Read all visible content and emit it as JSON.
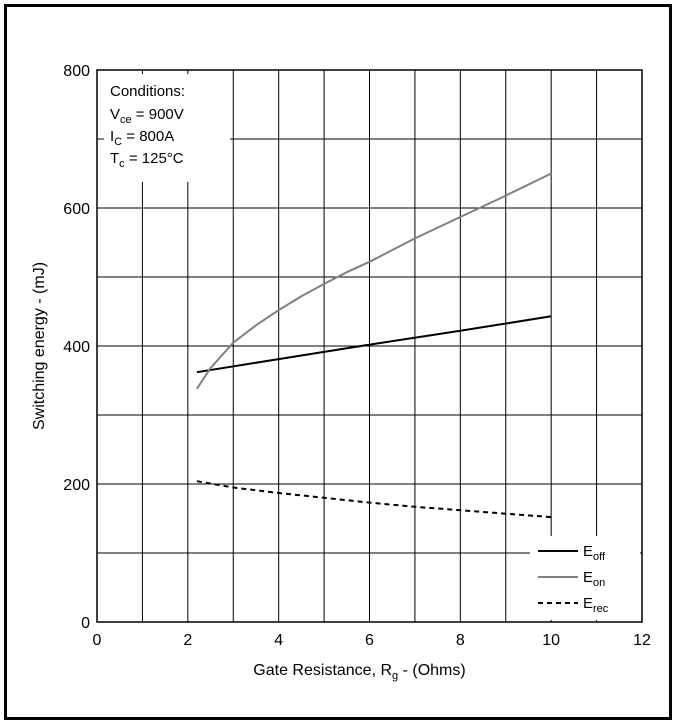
{
  "chart_data": {
    "type": "line",
    "xlabel": {
      "main": "Gate Resistance, R",
      "sub": "g",
      "tail": " - (Ohms)"
    },
    "ylabel": "Switching energy - (mJ)",
    "xlim": [
      0,
      12
    ],
    "ylim": [
      0,
      800
    ],
    "x_ticks": [
      0,
      2,
      4,
      6,
      8,
      10,
      12
    ],
    "y_ticks": [
      0,
      200,
      400,
      600,
      800
    ],
    "grid": true,
    "legend_position": "bottom-right",
    "conditions": {
      "title": "Conditions:",
      "lines": [
        {
          "main": "V",
          "sub": "ce",
          "tail": " = 900V"
        },
        {
          "main": "I",
          "sub": "C",
          "tail": " = 800A"
        },
        {
          "main": "T",
          "sub": "c",
          "tail": " = 125°C"
        }
      ]
    },
    "series": [
      {
        "key": "eoff",
        "label_main": "E",
        "label_sub": "off",
        "color": "#000000",
        "style": "solid",
        "x": [
          2.2,
          4,
          6,
          8,
          10
        ],
        "y": [
          362,
          381,
          402,
          422,
          443
        ]
      },
      {
        "key": "eon",
        "label_main": "E",
        "label_sub": "on",
        "color": "#808080",
        "style": "solid",
        "x": [
          2.2,
          2.5,
          3,
          3.5,
          4,
          4.5,
          5,
          5.5,
          6,
          7,
          8,
          9,
          10
        ],
        "y": [
          338,
          368,
          405,
          430,
          452,
          472,
          490,
          507,
          522,
          556,
          587,
          618,
          650
        ]
      },
      {
        "key": "erec",
        "label_main": "E",
        "label_sub": "rec",
        "color": "#000000",
        "style": "dashed",
        "x": [
          2.2,
          3,
          4,
          5,
          6,
          7,
          8,
          9,
          10
        ],
        "y": [
          204,
          195,
          187,
          180,
          173,
          167,
          162,
          157,
          152
        ]
      }
    ]
  }
}
